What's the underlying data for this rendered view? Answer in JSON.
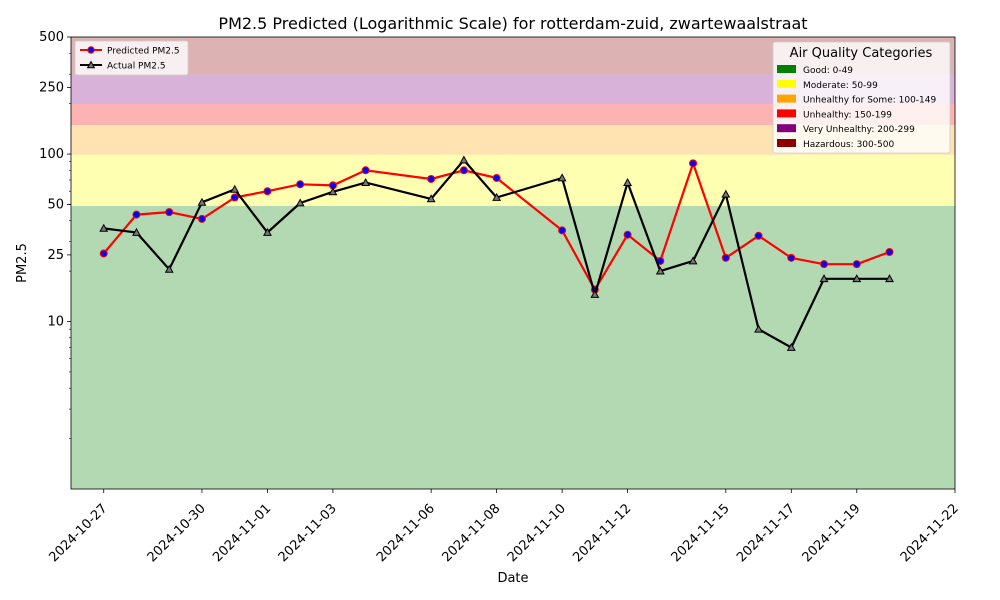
{
  "chart_data": {
    "type": "line",
    "title": "PM2.5 Predicted (Logarithmic Scale) for rotterdam-zuid, zwartewaalstraat",
    "xlabel": "Date",
    "ylabel": "PM2.5",
    "yscale": "log",
    "ylim": [
      1,
      500
    ],
    "xlim": [
      "2024-10-26",
      "2024-11-22"
    ],
    "x_ticks": [
      "2024-10-27",
      "2024-10-30",
      "2024-11-01",
      "2024-11-03",
      "2024-11-06",
      "2024-11-08",
      "2024-11-10",
      "2024-11-12",
      "2024-11-15",
      "2024-11-17",
      "2024-11-19",
      "2024-11-22"
    ],
    "y_ticks": [
      10,
      25,
      50,
      100,
      250,
      500
    ],
    "grid": false,
    "legend_placement": "upper-left",
    "series": [
      {
        "name": "Predicted PM2.5",
        "color": "#ff0000",
        "marker_color": "#0000ff",
        "marker": "circle",
        "x": [
          "2024-10-27",
          "2024-10-28",
          "2024-10-29",
          "2024-10-30",
          "2024-10-31",
          "2024-11-01",
          "2024-11-02",
          "2024-11-03",
          "2024-11-04",
          "2024-11-06",
          "2024-11-07",
          "2024-11-08",
          "2024-11-10",
          "2024-11-11",
          "2024-11-12",
          "2024-11-13",
          "2024-11-14",
          "2024-11-15",
          "2024-11-16",
          "2024-11-17",
          "2024-11-18",
          "2024-11-19",
          "2024-11-20"
        ],
        "y": [
          25.5,
          43.5,
          45,
          41,
          55,
          60,
          66,
          65,
          80,
          71,
          80,
          72,
          35,
          15.5,
          33,
          23,
          88,
          24,
          32.5,
          24,
          22,
          22,
          26
        ]
      },
      {
        "name": "Actual PM2.5",
        "color": "#000000",
        "marker_color": "#000000",
        "marker": "triangle",
        "x": [
          "2024-10-27",
          "2024-10-28",
          "2024-10-29",
          "2024-10-30",
          "2024-10-31",
          "2024-11-01",
          "2024-11-02",
          "2024-11-03",
          "2024-11-04",
          "2024-11-06",
          "2024-11-07",
          "2024-11-08",
          "2024-11-10",
          "2024-11-11",
          "2024-11-12",
          "2024-11-13",
          "2024-11-14",
          "2024-11-15",
          "2024-11-16",
          "2024-11-17",
          "2024-11-18",
          "2024-11-19",
          "2024-11-20"
        ],
        "y": [
          36,
          34,
          20.5,
          51.5,
          61.5,
          34,
          51,
          59.5,
          67.5,
          54,
          92,
          55,
          72,
          14.5,
          67.5,
          20,
          23,
          57.5,
          9,
          7,
          18,
          18,
          18
        ]
      }
    ],
    "category_bands": [
      {
        "label": "Good: 0-49",
        "min": 0,
        "max": 49,
        "color": "#008000"
      },
      {
        "label": "Moderate: 50-99",
        "min": 49,
        "max": 99,
        "color": "#ffff00"
      },
      {
        "label": "Unhealthy for Some: 100-149",
        "min": 99,
        "max": 149,
        "color": "#ffa500"
      },
      {
        "label": "Unhealthy: 150-199",
        "min": 149,
        "max": 199,
        "color": "#ff0000"
      },
      {
        "label": "Very Unhealthy: 200-299",
        "min": 199,
        "max": 299,
        "color": "#800080"
      },
      {
        "label": "Hazardous: 300-500",
        "min": 299,
        "max": 500,
        "color": "#8b0000"
      }
    ],
    "category_legend_title": "Air Quality Categories"
  }
}
